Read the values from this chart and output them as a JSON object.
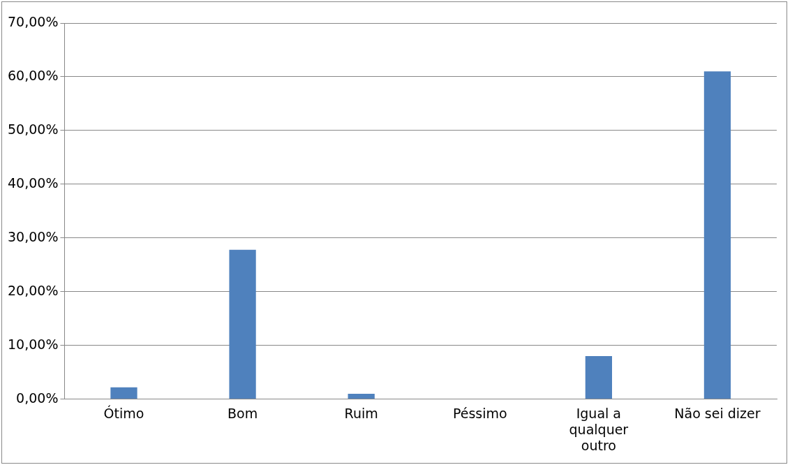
{
  "chart_data": {
    "type": "bar",
    "categories": [
      "Ótimo",
      "Bom",
      "Ruim",
      "Péssimo",
      [
        "Igual a",
        "qualquer",
        "outro"
      ],
      "Não sei dizer"
    ],
    "values": [
      2.2,
      27.8,
      1.0,
      0,
      8.0,
      61.0
    ],
    "color": "#4f81bd",
    "ylim": [
      0,
      70
    ],
    "yticks": [
      {
        "value": 0,
        "label": "0,00%"
      },
      {
        "value": 10,
        "label": "10,00%"
      },
      {
        "value": 20,
        "label": "20,00%"
      },
      {
        "value": 30,
        "label": "30,00%"
      },
      {
        "value": 40,
        "label": "40,00%"
      },
      {
        "value": 50,
        "label": "50,00%"
      },
      {
        "value": 60,
        "label": "60,00%"
      },
      {
        "value": 70,
        "label": "70,00%"
      }
    ],
    "grid": "y",
    "legend": false
  }
}
